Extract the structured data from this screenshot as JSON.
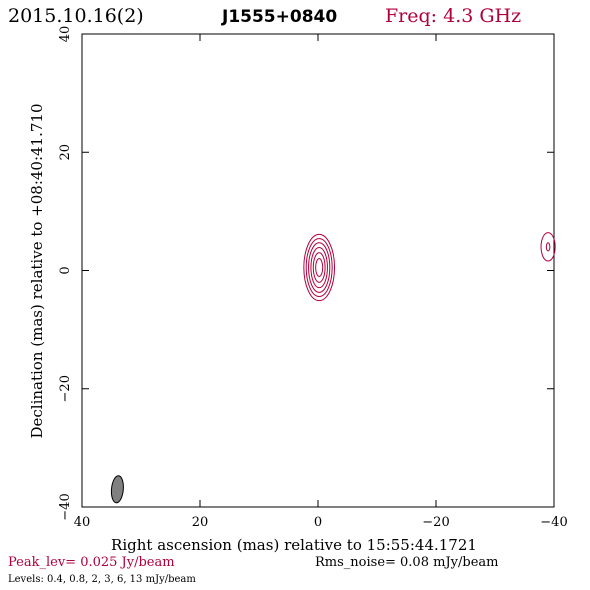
{
  "header": {
    "date": "2015.10.16(2)",
    "source": "J1555+0840",
    "freq": "Freq: 4.3 GHz"
  },
  "footer": {
    "peak": "Peak_lev=  0.025 Jy/beam",
    "rms": "Rms_noise= 0.08 mJy/beam",
    "levels": "Levels: 0.4, 0.8,    2,    3,    6,   13 mJy/beam"
  },
  "colors": {
    "contour": "#b0003a",
    "peak_text": "#b0003a",
    "freq_text": "#b0003a",
    "beam_fill": "#808080",
    "axis": "#000000"
  },
  "chart_data": {
    "type": "contour",
    "title": "J1555+0840",
    "xlabel": "Right ascension (mas) relative to 15:55:44.1721",
    "ylabel": "Declination (mas) relative to +08:40:41.710",
    "xlim": [
      40,
      -40
    ],
    "ylim": [
      -40,
      40
    ],
    "x_ticks": [
      40,
      20,
      0,
      -20,
      -40
    ],
    "y_ticks": [
      -40,
      -20,
      0,
      20,
      40
    ],
    "x_tick_labels": [
      "40",
      "20",
      "0",
      "−20",
      "−40"
    ],
    "y_tick_labels": [
      "−40",
      "−20",
      "0",
      "20",
      "40"
    ],
    "levels_mJy": [
      0.4,
      0.8,
      2,
      3,
      6,
      13
    ],
    "peak_Jy_per_beam": 0.025,
    "rms_mJy_per_beam": 0.08,
    "components": [
      {
        "name": "core",
        "x": -0.2,
        "y": 0.5,
        "contour_semi_axes": [
          [
            2.6,
            5.6
          ],
          [
            2.2,
            4.9
          ],
          [
            1.8,
            4.2
          ],
          [
            1.4,
            3.4
          ],
          [
            1.0,
            2.5
          ],
          [
            0.6,
            1.5
          ]
        ]
      },
      {
        "name": "secondary",
        "x": -39.0,
        "y": 4.0,
        "contour_semi_axes": [
          [
            1.2,
            2.4
          ],
          [
            0.3,
            0.7
          ]
        ]
      }
    ],
    "beam": {
      "x": 34.0,
      "y": -37.0,
      "semi_major": 2.3,
      "semi_minor": 1.0,
      "pa_deg": 5
    }
  }
}
